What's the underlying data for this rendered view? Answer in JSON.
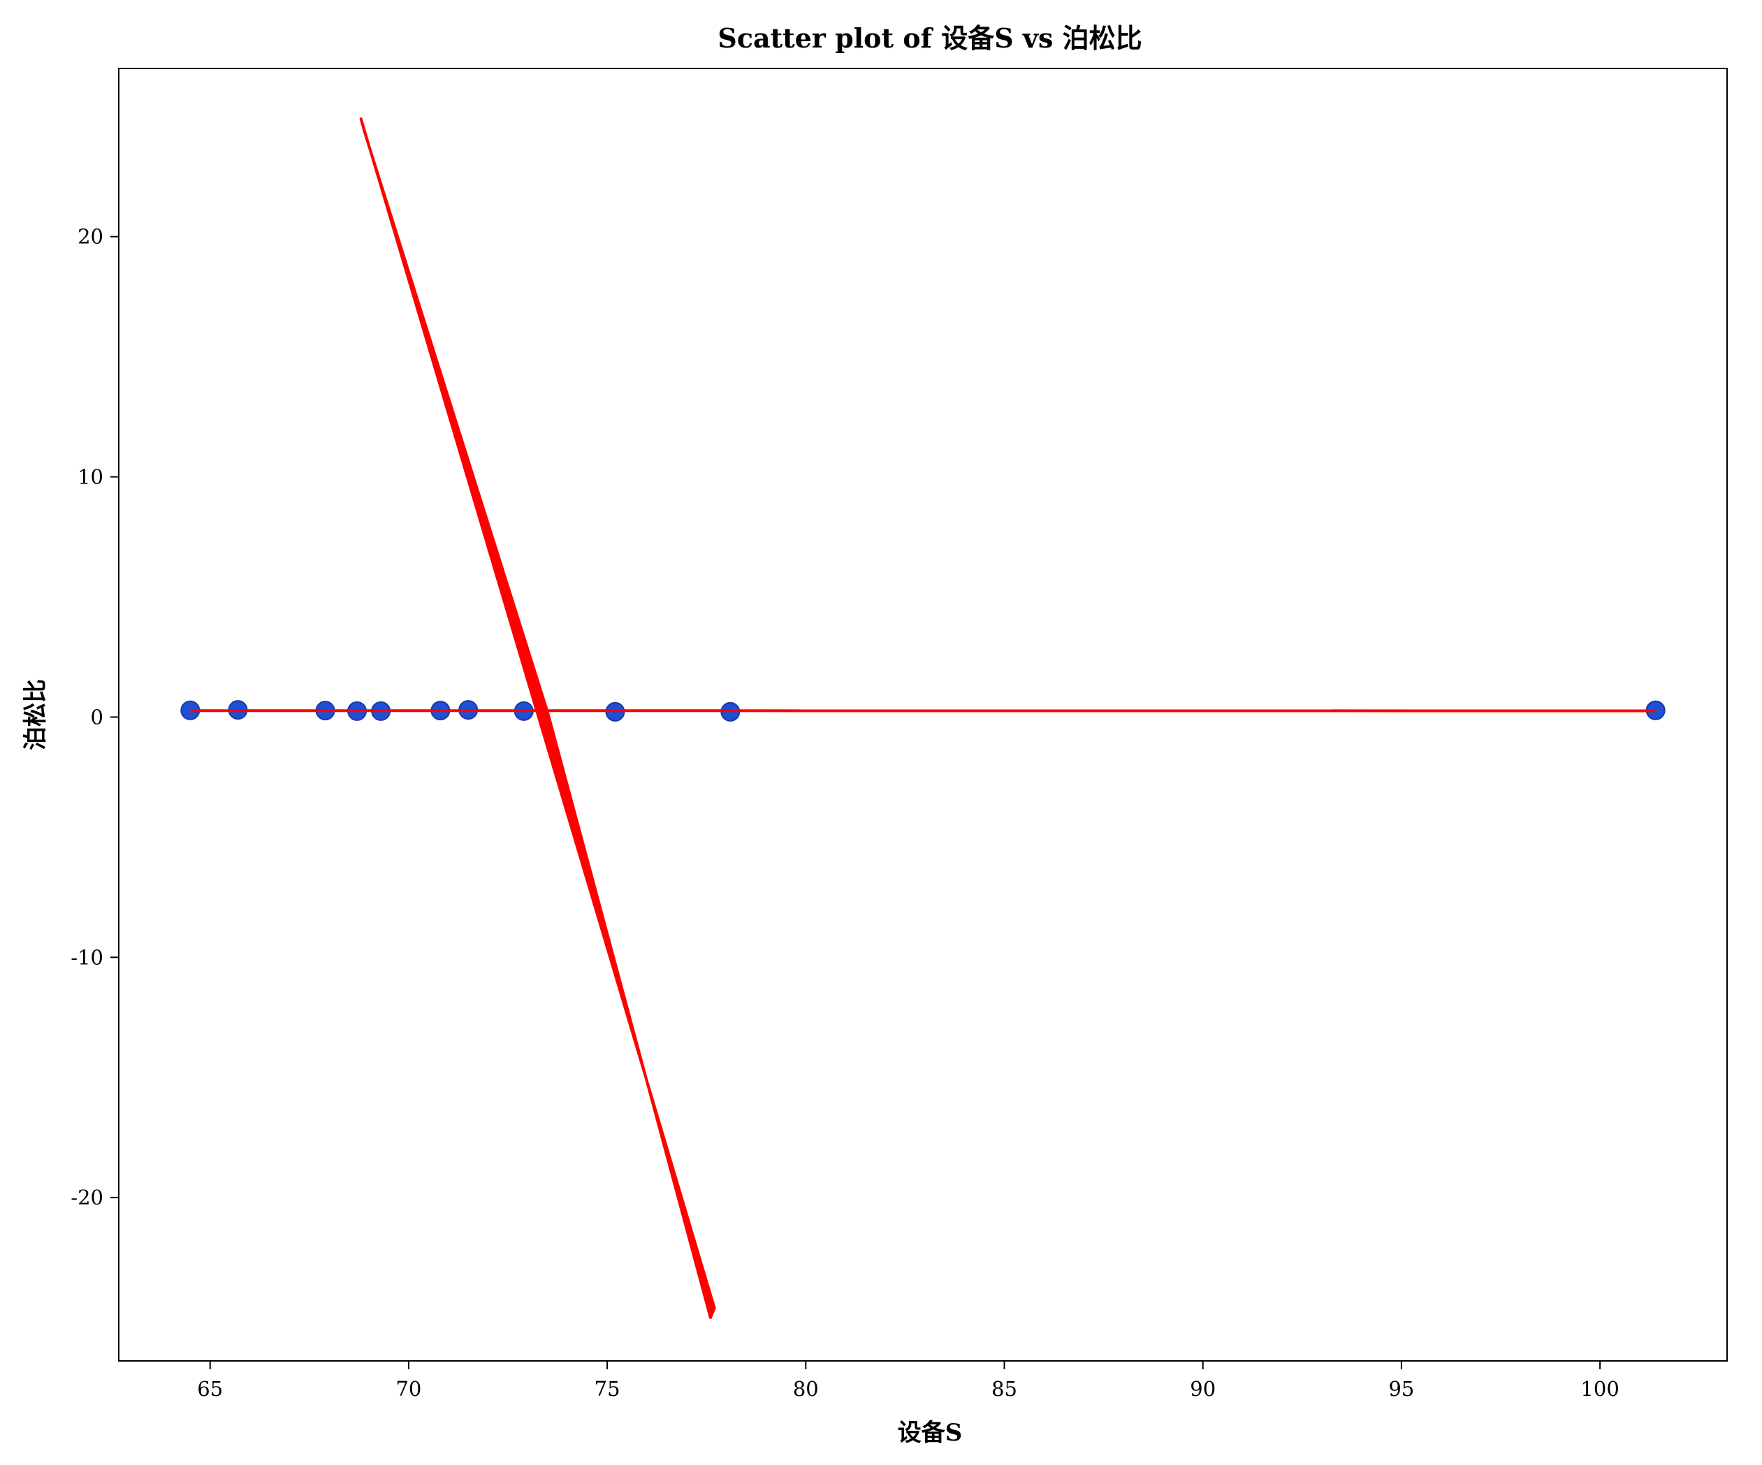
{
  "chart_data": {
    "type": "scatter",
    "title": "Scatter plot of 设备S vs 泊松比",
    "xlabel": "设备S",
    "ylabel": "泊松比",
    "xlim": [
      62.7,
      103.2
    ],
    "ylim": [
      -26.8,
      27.0
    ],
    "x_ticks": [
      65,
      70,
      75,
      80,
      85,
      90,
      95,
      100
    ],
    "y_ticks": [
      -20,
      -10,
      0,
      10,
      20
    ],
    "x_tick_labels": [
      "65",
      "70",
      "75",
      "80",
      "85",
      "90",
      "95",
      "100"
    ],
    "y_tick_labels": [
      "-20",
      "-10",
      "0",
      "10",
      "20"
    ],
    "grid": false,
    "points": [
      {
        "x": 64.5,
        "y": 0.28
      },
      {
        "x": 65.7,
        "y": 0.3
      },
      {
        "x": 67.9,
        "y": 0.27
      },
      {
        "x": 68.7,
        "y": 0.25
      },
      {
        "x": 69.3,
        "y": 0.25
      },
      {
        "x": 70.8,
        "y": 0.27
      },
      {
        "x": 71.5,
        "y": 0.3
      },
      {
        "x": 72.9,
        "y": 0.25
      },
      {
        "x": 75.2,
        "y": 0.22
      },
      {
        "x": 78.1,
        "y": 0.22
      },
      {
        "x": 101.4,
        "y": 0.28
      }
    ],
    "fit_line": {
      "x": [
        64.5,
        101.4
      ],
      "y": [
        0.27,
        0.26
      ]
    },
    "curve": [
      {
        "x": 68.8,
        "y": 24.9
      },
      {
        "x": 73.2,
        "y": 0.4
      },
      {
        "x": 77.7,
        "y": -24.6
      },
      {
        "x": 77.6,
        "y": -25.0
      },
      {
        "x": 73.5,
        "y": 0.2
      },
      {
        "x": 68.9,
        "y": 24.3
      }
    ],
    "colors": {
      "points": "#1f4fd6",
      "points_edge": "#1a3a9e",
      "line": "#ff0000"
    }
  }
}
